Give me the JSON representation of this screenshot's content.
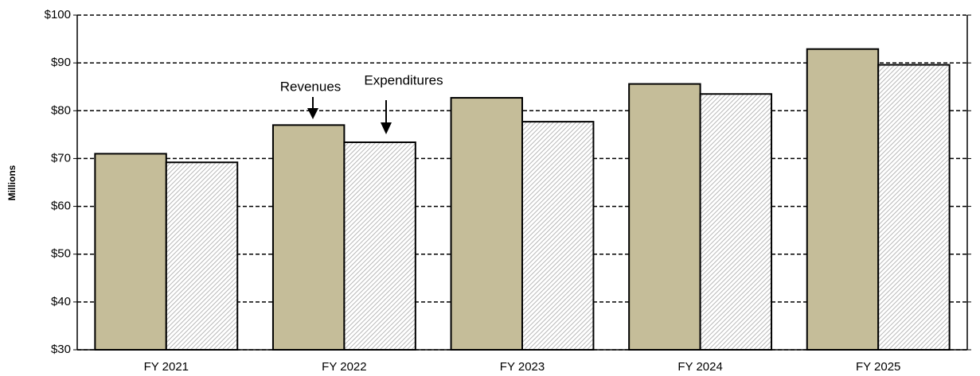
{
  "chart_data": {
    "type": "bar",
    "y_label": "Millions",
    "categories": [
      "FY 2021",
      "FY 2022",
      "FY 2023",
      "FY 2024",
      "FY 2025"
    ],
    "series": [
      {
        "name": "Revenues",
        "color": "#c5bd99",
        "values": [
          71,
          77,
          82.7,
          85.6,
          92.9
        ]
      },
      {
        "name": "Expenditures",
        "color": "#a6a6a6",
        "hatch": true,
        "values": [
          69.2,
          73.4,
          77.7,
          83.5,
          89.6
        ]
      }
    ],
    "ylim": [
      30,
      100
    ],
    "yticks": [
      {
        "value": 30,
        "label": "$30"
      },
      {
        "value": 40,
        "label": "$40"
      },
      {
        "value": 50,
        "label": "$50"
      },
      {
        "value": 60,
        "label": "$60"
      },
      {
        "value": 70,
        "label": "$70"
      },
      {
        "value": 80,
        "label": "$80"
      },
      {
        "value": 90,
        "label": "$90"
      },
      {
        "value": 100,
        "label": "$100"
      }
    ],
    "grid": true
  }
}
